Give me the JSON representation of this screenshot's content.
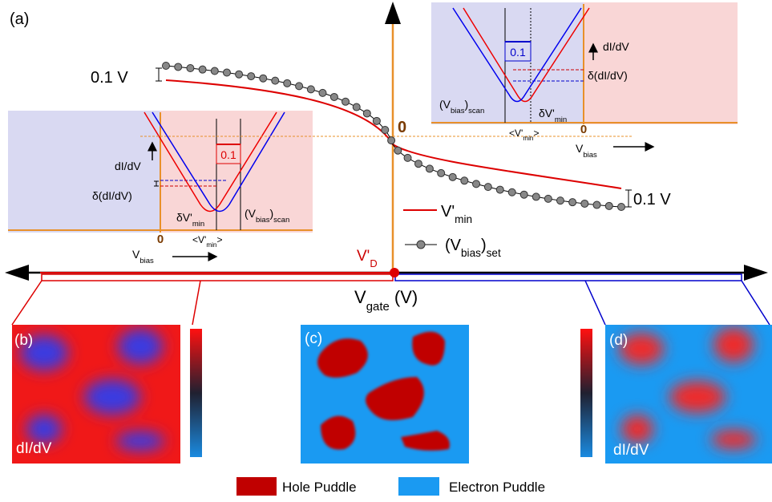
{
  "labels": {
    "a": "(a)",
    "b": "(b)",
    "c": "(c)",
    "d": "(d)"
  },
  "main_plot": {
    "scale_left": "0.1 V",
    "scale_right": "0.1 V",
    "origin": "0",
    "dirac_point": [
      {
        "t": "V'"
      },
      {
        "t": "D",
        "sub": true
      }
    ],
    "x_axis": [
      {
        "t": "V"
      },
      {
        "t": "gate",
        "sub": true
      },
      {
        "t": " (V)"
      }
    ],
    "legend": [
      [
        {
          "t": "V'"
        },
        {
          "t": "min",
          "sub": true
        }
      ],
      [
        {
          "t": "(V"
        },
        {
          "t": "bias",
          "sub": true
        },
        {
          "t": ")"
        },
        {
          "t": "set",
          "sub": true
        }
      ]
    ]
  },
  "inset_left": {
    "step": "0.1",
    "y_label": "dI/dV",
    "delta_y": "δ(dI/dV)",
    "delta_v": [
      {
        "t": "δV'"
      },
      {
        "t": "min",
        "sub": true
      }
    ],
    "scan": [
      {
        "t": "(V"
      },
      {
        "t": "bias",
        "sub": true
      },
      {
        "t": ")"
      },
      {
        "t": "scan",
        "sub": true
      }
    ],
    "zero": "0",
    "mean": [
      {
        "t": "<V'"
      },
      {
        "t": "min",
        "sub": true
      },
      {
        "t": ">"
      }
    ],
    "x_label": [
      {
        "t": "V"
      },
      {
        "t": "bias",
        "sub": true
      }
    ]
  },
  "inset_right": {
    "step": "0.1",
    "y_label": "dI/dV",
    "delta_y": "δ(dI/dV)",
    "delta_v": [
      {
        "t": "δV'"
      },
      {
        "t": "min",
        "sub": true
      }
    ],
    "scan": [
      {
        "t": "(V"
      },
      {
        "t": "bias",
        "sub": true
      },
      {
        "t": ")"
      },
      {
        "t": "scan",
        "sub": true
      }
    ],
    "zero": "0",
    "mean": [
      {
        "t": "<V'"
      },
      {
        "t": "min",
        "sub": true
      },
      {
        "t": ">"
      }
    ],
    "x_label": [
      {
        "t": "V"
      },
      {
        "t": "bias",
        "sub": true
      }
    ]
  },
  "maps": {
    "b_label": "dI/dV",
    "d_label": "dI/dV"
  },
  "legend": {
    "hole": "Hole Puddle",
    "electron": "Electron Puddle"
  }
}
